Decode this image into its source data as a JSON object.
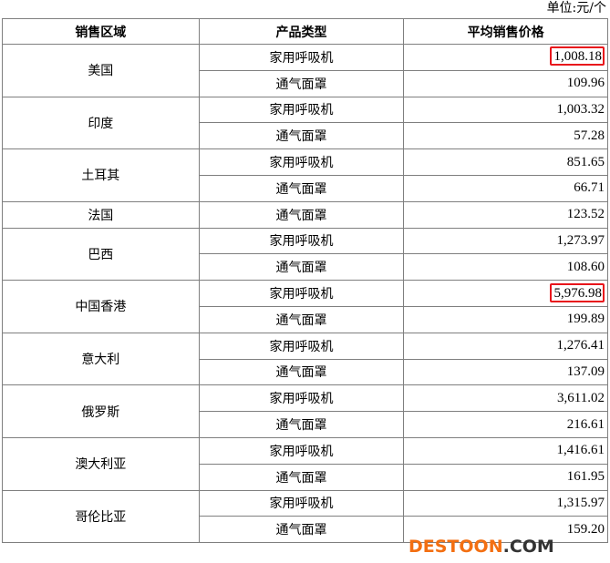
{
  "unit_label": "单位:元/个",
  "headers": [
    "销售区域",
    "产品类型",
    "平均销售价格"
  ],
  "rows": [
    {
      "region": "美国",
      "items": [
        {
          "type": "家用呼吸机",
          "price": "1,008.18",
          "highlight": true
        },
        {
          "type": "通气面罩",
          "price": "109.96"
        }
      ]
    },
    {
      "region": "印度",
      "items": [
        {
          "type": "家用呼吸机",
          "price": "1,003.32"
        },
        {
          "type": "通气面罩",
          "price": "57.28"
        }
      ]
    },
    {
      "region": "土耳其",
      "items": [
        {
          "type": "家用呼吸机",
          "price": "851.65"
        },
        {
          "type": "通气面罩",
          "price": "66.71"
        }
      ]
    },
    {
      "region": "法国",
      "items": [
        {
          "type": "通气面罩",
          "price": "123.52"
        }
      ]
    },
    {
      "region": "巴西",
      "items": [
        {
          "type": "家用呼吸机",
          "price": "1,273.97"
        },
        {
          "type": "通气面罩",
          "price": "108.60"
        }
      ]
    },
    {
      "region": "中国香港",
      "items": [
        {
          "type": "家用呼吸机",
          "price": "5,976.98",
          "highlight": true
        },
        {
          "type": "通气面罩",
          "price": "199.89"
        }
      ]
    },
    {
      "region": "意大利",
      "items": [
        {
          "type": "家用呼吸机",
          "price": "1,276.41"
        },
        {
          "type": "通气面罩",
          "price": "137.09"
        }
      ]
    },
    {
      "region": "俄罗斯",
      "items": [
        {
          "type": "家用呼吸机",
          "price": "3,611.02"
        },
        {
          "type": "通气面罩",
          "price": "216.61"
        }
      ]
    },
    {
      "region": "澳大利亚",
      "items": [
        {
          "type": "家用呼吸机",
          "price": "1,416.61"
        },
        {
          "type": "通气面罩",
          "price": "161.95"
        }
      ]
    },
    {
      "region": "哥伦比亚",
      "items": [
        {
          "type": "家用呼吸机",
          "price": "1,315.97"
        },
        {
          "type": "通气面罩",
          "price": "159.20"
        }
      ]
    }
  ],
  "highlight_color": "#e8141b",
  "watermark": {
    "part1": "DESTOON",
    "part2": ".COM"
  }
}
